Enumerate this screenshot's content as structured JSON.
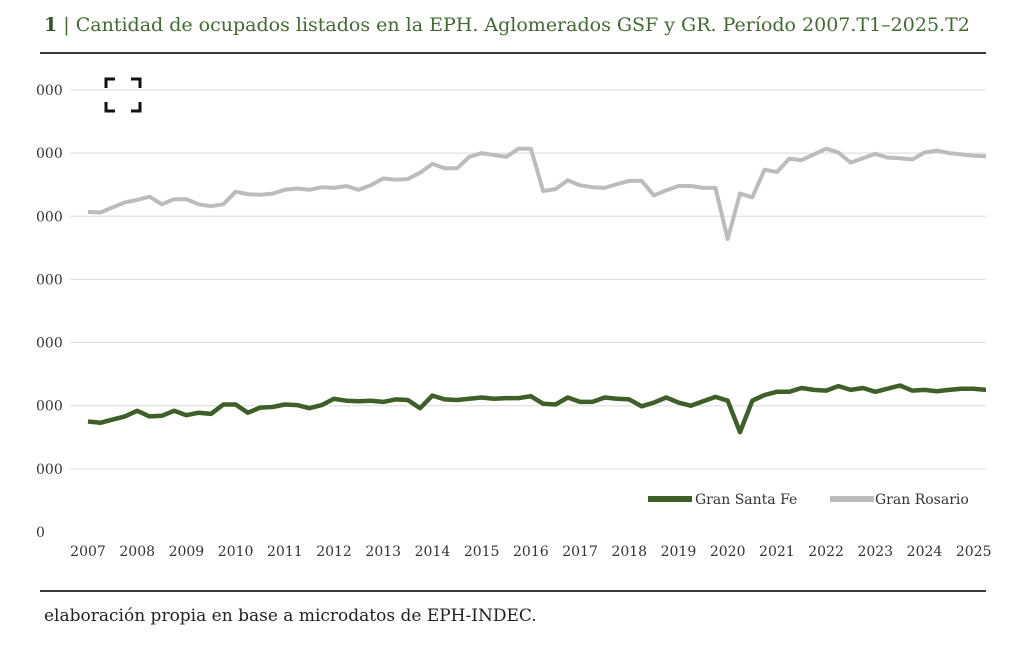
{
  "header": {
    "figure_number": "1",
    "title": "| Cantidad de ocupados listados en la EPH. Aglomerados GSF y GR. Período 2007.T1–2025.T2"
  },
  "footer": {
    "source": "elaboración propia en base a microdatos de EPH-INDEC."
  },
  "icons": {
    "fullscreen": "fullscreen-icon"
  },
  "colors": {
    "gsf": "#3e5f28",
    "gr": "#bcbcbc"
  },
  "chart_data": {
    "type": "line",
    "title": "Cantidad de ocupados listados en la EPH. Aglomerados GSF y GR. Período 2007.T1–2025.T2",
    "xlabel": "",
    "ylabel": "",
    "xlim": [
      2007,
      2025.25
    ],
    "ylim": [
      0,
      7000
    ],
    "grid": true,
    "y_ticks": [
      0,
      1000,
      2000,
      3000,
      4000,
      5000,
      6000,
      7000
    ],
    "y_tick_labels": [
      "0",
      "000",
      "000",
      "000",
      "000",
      "000",
      "000",
      "000"
    ],
    "x_ticks": [
      2007,
      2008,
      2009,
      2010,
      2011,
      2012,
      2013,
      2014,
      2015,
      2016,
      2017,
      2018,
      2019,
      2020,
      2021,
      2022,
      2023,
      2024,
      2025
    ],
    "x_tick_labels": [
      "2007",
      "2008",
      "2009",
      "2010",
      "2011",
      "2012",
      "2013",
      "2014",
      "2015",
      "2016",
      "2017",
      "2018",
      "2019",
      "2020",
      "2021",
      "2022",
      "2023",
      "2024",
      "2025"
    ],
    "legend_position": "bottom-right",
    "series": [
      {
        "name": "Gran Santa Fe",
        "color": "#3e5f28",
        "start": 2007,
        "step": 0.25,
        "values": [
          1750,
          1730,
          1780,
          1830,
          1920,
          1830,
          1840,
          1920,
          1850,
          1890,
          1870,
          2020,
          2020,
          1890,
          1970,
          1980,
          2020,
          2010,
          1960,
          2010,
          2110,
          2080,
          2070,
          2080,
          2060,
          2100,
          2090,
          1960,
          2160,
          2100,
          2090,
          2110,
          2130,
          2110,
          2120,
          2120,
          2150,
          2030,
          2020,
          2130,
          2060,
          2060,
          2130,
          2110,
          2100,
          1990,
          2050,
          2130,
          2050,
          2000,
          2070,
          2140,
          2080,
          1580,
          2080,
          2170,
          2220,
          2220,
          2280,
          2250,
          2240,
          2310,
          2250,
          2280,
          2220,
          2270,
          2320,
          2240,
          2250,
          2230,
          2250,
          2270,
          2270,
          2250
        ]
      },
      {
        "name": "Gran Rosario",
        "color": "#bcbcbc",
        "start": 2007,
        "step": 0.25,
        "values": [
          5070,
          5060,
          5140,
          5220,
          5260,
          5310,
          5190,
          5270,
          5270,
          5190,
          5160,
          5190,
          5390,
          5350,
          5340,
          5360,
          5420,
          5440,
          5420,
          5460,
          5450,
          5480,
          5420,
          5490,
          5600,
          5580,
          5590,
          5690,
          5830,
          5760,
          5760,
          5940,
          6000,
          5970,
          5940,
          6070,
          6070,
          5400,
          5430,
          5570,
          5490,
          5460,
          5450,
          5510,
          5560,
          5560,
          5330,
          5410,
          5480,
          5480,
          5450,
          5450,
          4640,
          5360,
          5300,
          5740,
          5700,
          5910,
          5890,
          5980,
          6070,
          6010,
          5850,
          5920,
          5990,
          5930,
          5920,
          5900,
          6010,
          6040,
          6000,
          5980,
          5960,
          5950
        ]
      }
    ]
  }
}
